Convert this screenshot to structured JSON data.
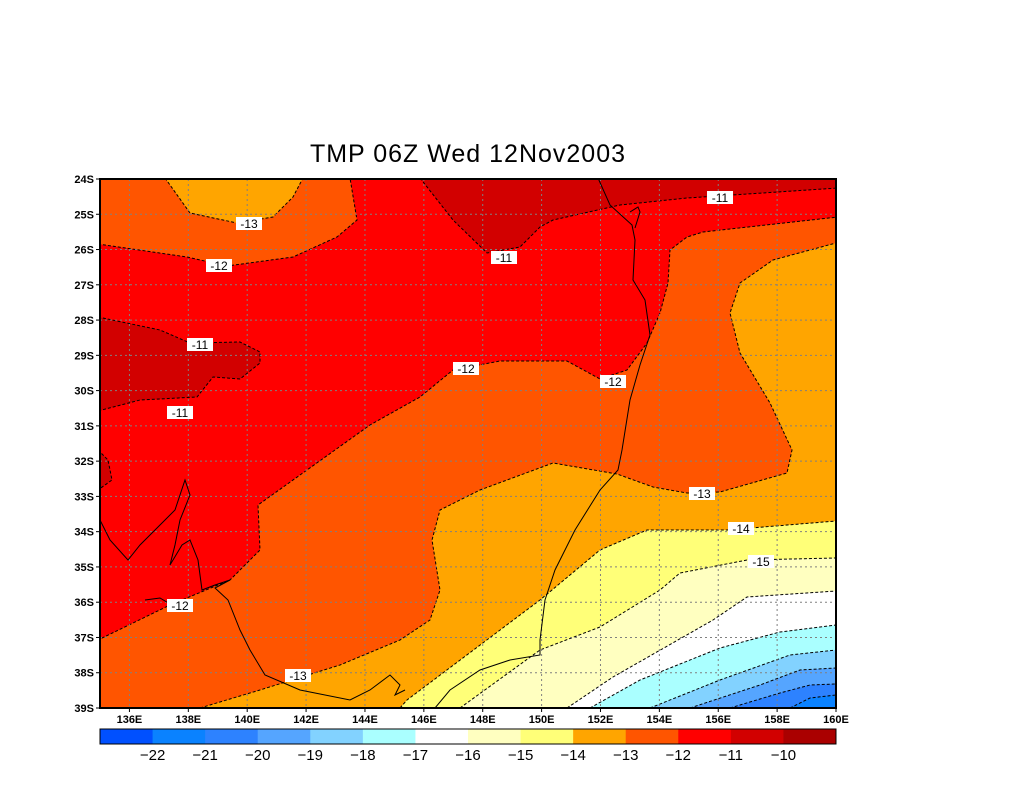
{
  "title": "TMP 06Z Wed 12Nov2003",
  "chart_data": {
    "type": "contour",
    "variable": "TMP",
    "x_ticks": [
      "136E",
      "138E",
      "140E",
      "142E",
      "144E",
      "146E",
      "148E",
      "150E",
      "152E",
      "154E",
      "156E",
      "158E",
      "160E"
    ],
    "x_tick_values": [
      136,
      138,
      140,
      142,
      144,
      146,
      148,
      150,
      152,
      154,
      156,
      158,
      160
    ],
    "y_ticks": [
      "24S",
      "25S",
      "26S",
      "27S",
      "28S",
      "29S",
      "30S",
      "31S",
      "32S",
      "33S",
      "34S",
      "35S",
      "36S",
      "37S",
      "38S",
      "39S"
    ],
    "y_tick_values": [
      -24,
      -25,
      -26,
      -27,
      -28,
      -29,
      -30,
      -31,
      -32,
      -33,
      -34,
      -35,
      -36,
      -37,
      -38,
      -39
    ],
    "xlim": [
      135,
      160
    ],
    "ylim": [
      -39,
      -24
    ],
    "grid": true,
    "legend_placement": "bottom",
    "legend_levels": [
      "-22",
      "-21",
      "-20",
      "-19",
      "-18",
      "-17",
      "-16",
      "-15",
      "-14",
      "-13",
      "-12",
      "-11",
      "-10"
    ],
    "legend_colors": [
      "#0050ff",
      "#0a82ff",
      "#2d82ff",
      "#55a5ff",
      "#82d2ff",
      "#aaffff",
      "#ffffff",
      "#ffffc0",
      "#ffff78",
      "#ffa500",
      "#ff5500",
      "#ff0000",
      "#d20000",
      "#aa0000"
    ],
    "contour_labels": [
      "-13",
      "-12",
      "-11",
      "-11",
      "-11",
      "-11",
      "-12",
      "-12",
      "-13",
      "-13",
      "-14",
      "-15",
      "-12"
    ]
  }
}
